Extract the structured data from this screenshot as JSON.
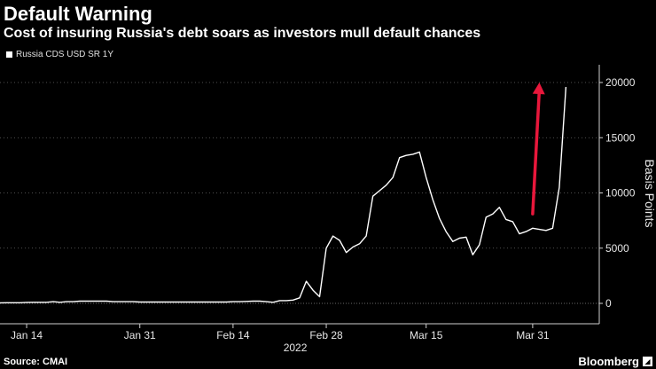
{
  "title": "Default Warning",
  "subtitle": "Cost of insuring Russia's debt soars as investors mull default chances",
  "source": "Source: CMAI",
  "brand": "Bloomberg",
  "colors": {
    "background": "#000000",
    "line": "#ffffff",
    "arrow": "#e8173b",
    "grid": "#6a6a6a"
  },
  "chart_data": {
    "type": "line",
    "xlabel": "2022",
    "ylabel": "Basis Points",
    "ylim": [
      0,
      21000
    ],
    "y_ticks": [
      0,
      5000,
      10000,
      15000,
      20000
    ],
    "y_tick_labels": [
      "0",
      "5000",
      "10000",
      "15000",
      "20000"
    ],
    "x_ticks": [
      "2022-01-14",
      "2022-01-31",
      "2022-02-14",
      "2022-02-28",
      "2022-03-15",
      "2022-03-31"
    ],
    "x_tick_labels": [
      "Jan 14",
      "Jan 31",
      "Feb 14",
      "Feb 28",
      "Mar 15",
      "Mar 31"
    ],
    "x_range": [
      "2022-01-10",
      "2022-04-10"
    ],
    "grid": "horizontal dotted",
    "legend_placement": "top-left",
    "series": [
      {
        "name": "Russia CDS USD SR 1Y",
        "x": [
          "2022-01-10",
          "2022-01-11",
          "2022-01-12",
          "2022-01-13",
          "2022-01-14",
          "2022-01-15",
          "2022-01-16",
          "2022-01-17",
          "2022-01-18",
          "2022-01-19",
          "2022-01-20",
          "2022-01-21",
          "2022-01-22",
          "2022-01-23",
          "2022-01-24",
          "2022-01-25",
          "2022-01-26",
          "2022-01-27",
          "2022-01-28",
          "2022-01-29",
          "2022-01-30",
          "2022-01-31",
          "2022-02-01",
          "2022-02-02",
          "2022-02-03",
          "2022-02-04",
          "2022-02-05",
          "2022-02-06",
          "2022-02-07",
          "2022-02-08",
          "2022-02-09",
          "2022-02-10",
          "2022-02-11",
          "2022-02-12",
          "2022-02-13",
          "2022-02-14",
          "2022-02-15",
          "2022-02-16",
          "2022-02-17",
          "2022-02-18",
          "2022-02-19",
          "2022-02-20",
          "2022-02-21",
          "2022-02-22",
          "2022-02-23",
          "2022-02-24",
          "2022-02-25",
          "2022-02-26",
          "2022-02-27",
          "2022-02-28",
          "2022-03-01",
          "2022-03-02",
          "2022-03-03",
          "2022-03-04",
          "2022-03-05",
          "2022-03-06",
          "2022-03-07",
          "2022-03-08",
          "2022-03-09",
          "2022-03-10",
          "2022-03-11",
          "2022-03-12",
          "2022-03-13",
          "2022-03-14",
          "2022-03-15",
          "2022-03-16",
          "2022-03-17",
          "2022-03-18",
          "2022-03-19",
          "2022-03-20",
          "2022-03-21",
          "2022-03-22",
          "2022-03-23",
          "2022-03-24",
          "2022-03-25",
          "2022-03-26",
          "2022-03-27",
          "2022-03-28",
          "2022-03-29",
          "2022-03-30",
          "2022-03-31",
          "2022-04-01",
          "2022-04-02",
          "2022-04-03",
          "2022-04-04",
          "2022-04-05"
        ],
        "y": [
          50,
          60,
          60,
          60,
          90,
          100,
          100,
          100,
          150,
          100,
          150,
          150,
          200,
          200,
          200,
          200,
          200,
          150,
          150,
          150,
          150,
          120,
          120,
          120,
          120,
          120,
          120,
          120,
          120,
          120,
          120,
          120,
          120,
          120,
          120,
          150,
          150,
          180,
          200,
          200,
          150,
          100,
          250,
          250,
          300,
          500,
          2000,
          1200,
          600,
          5000,
          6100,
          5700,
          4600,
          5100,
          5400,
          6100,
          9700,
          10200,
          10700,
          11400,
          13200,
          13400,
          13500,
          13700,
          11400,
          9400,
          7700,
          6500,
          5600,
          5900,
          6000,
          4400,
          5300,
          7800,
          8100,
          8700,
          7600,
          7400,
          6300,
          6500,
          6800,
          6700,
          6600,
          6800,
          10500,
          19600
        ]
      }
    ],
    "annotations": [
      {
        "type": "arrow",
        "from": [
          "2022-03-31",
          8100
        ],
        "to": [
          "2022-04-01",
          20000
        ]
      }
    ]
  }
}
